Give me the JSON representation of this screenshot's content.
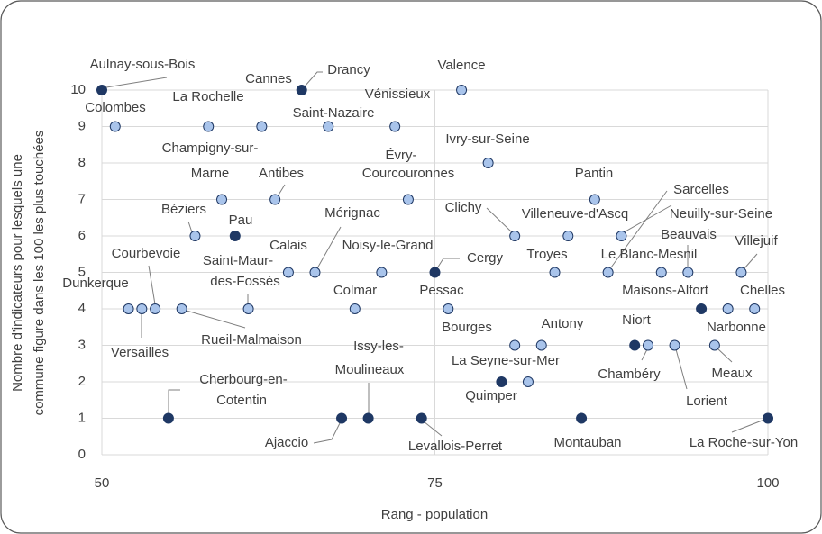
{
  "chart_data": {
    "type": "scatter",
    "xlabel": "Rang - population",
    "ylabel": [
      "Nombre d'indicateurs pour lesquels une",
      "commune figure dans les 100 les plus touchées"
    ],
    "xlim": [
      50,
      100
    ],
    "xticks": [
      50,
      75,
      100
    ],
    "ylim": [
      0,
      10
    ],
    "yticks": [
      0,
      1,
      2,
      3,
      4,
      5,
      6,
      7,
      8,
      9,
      10
    ],
    "grid": true,
    "points": [
      {
        "label": "Aulnay-sous-Bois",
        "x": 50,
        "y": 10,
        "color": "#1f3864"
      },
      {
        "label": "Drancy",
        "x": 65,
        "y": 10,
        "color": "#1f3864"
      },
      {
        "label": "Valence",
        "x": 77,
        "y": 10,
        "color": "#a9c4eb"
      },
      {
        "label": "Colombes",
        "x": 51,
        "y": 9,
        "color": "#a9c4eb"
      },
      {
        "label": "La Rochelle",
        "x": 58,
        "y": 9,
        "color": "#a9c4eb"
      },
      {
        "label": "Cannes",
        "x": 62,
        "y": 9,
        "color": "#a9c4eb"
      },
      {
        "label": "Saint-Nazaire",
        "x": 67,
        "y": 9,
        "color": "#a9c4eb"
      },
      {
        "label": "Vénissieux",
        "x": 72,
        "y": 9,
        "color": "#a9c4eb"
      },
      {
        "label": "Ivry-sur-Seine",
        "x": 79,
        "y": 8,
        "color": "#a9c4eb"
      },
      {
        "label": [
          "Champigny-sur-",
          "Marne"
        ],
        "x": 59,
        "y": 7,
        "color": "#a9c4eb"
      },
      {
        "label": "Antibes",
        "x": 63,
        "y": 7,
        "color": "#a9c4eb"
      },
      {
        "label": [
          "Évry-",
          "Courcouronnes"
        ],
        "x": 73,
        "y": 7,
        "color": "#a9c4eb"
      },
      {
        "label": "Pantin",
        "x": 87,
        "y": 7,
        "color": "#a9c4eb"
      },
      {
        "label": "Béziers",
        "x": 57,
        "y": 6,
        "color": "#a9c4eb"
      },
      {
        "label": "Pau",
        "x": 60,
        "y": 6,
        "color": "#1f3864"
      },
      {
        "label": "Clichy",
        "x": 81,
        "y": 6,
        "color": "#a9c4eb"
      },
      {
        "label": "Villeneuve-d'Ascq",
        "x": 85,
        "y": 6,
        "color": "#a9c4eb"
      },
      {
        "label": "Neuilly-sur-Seine",
        "x": 89,
        "y": 6,
        "color": "#a9c4eb"
      },
      {
        "label": "Calais",
        "x": 64,
        "y": 5,
        "color": "#a9c4eb"
      },
      {
        "label": "Mérignac",
        "x": 66,
        "y": 5,
        "color": "#a9c4eb"
      },
      {
        "label": "Noisy-le-Grand",
        "x": 71,
        "y": 5,
        "color": "#a9c4eb"
      },
      {
        "label": "Cergy",
        "x": 75,
        "y": 5,
        "color": "#1f3864"
      },
      {
        "label": "Troyes",
        "x": 84,
        "y": 5,
        "color": "#a9c4eb"
      },
      {
        "label": "Sarcelles",
        "x": 88,
        "y": 5,
        "color": "#a9c4eb"
      },
      {
        "label": "Le Blanc-Mesnil",
        "x": 92,
        "y": 5,
        "color": "#a9c4eb"
      },
      {
        "label": "Beauvais",
        "x": 94,
        "y": 5,
        "color": "#a9c4eb"
      },
      {
        "label": "Villejuif",
        "x": 98,
        "y": 5,
        "color": "#a9c4eb"
      },
      {
        "label": "Dunkerque",
        "x": 52,
        "y": 4,
        "color": "#a9c4eb"
      },
      {
        "label": "Versailles",
        "x": 53,
        "y": 4,
        "color": "#a9c4eb"
      },
      {
        "label": "Courbevoie",
        "x": 54,
        "y": 4,
        "color": "#a9c4eb"
      },
      {
        "label": "Rueil-Malmaison",
        "x": 56,
        "y": 4,
        "color": "#a9c4eb"
      },
      {
        "label": [
          "Saint-Maur-",
          "des-Fossés"
        ],
        "x": 61,
        "y": 4,
        "color": "#a9c4eb"
      },
      {
        "label": "Colmar",
        "x": 69,
        "y": 4,
        "color": "#a9c4eb"
      },
      {
        "label": "Pessac",
        "x": 76,
        "y": 4,
        "color": "#a9c4eb"
      },
      {
        "label": "Maisons-Alfort",
        "x": 95,
        "y": 4,
        "color": "#1f3864"
      },
      {
        "label": "Narbonne",
        "x": 97,
        "y": 4,
        "color": "#a9c4eb"
      },
      {
        "label": "Chelles",
        "x": 99,
        "y": 4,
        "color": "#a9c4eb"
      },
      {
        "label": "Bourges",
        "x": 81,
        "y": 3,
        "color": "#a9c4eb"
      },
      {
        "label": "Antony",
        "x": 83,
        "y": 3,
        "color": "#a9c4eb"
      },
      {
        "label": "Niort",
        "x": 90,
        "y": 3,
        "color": "#1f3864"
      },
      {
        "label": "Chambéry",
        "x": 91,
        "y": 3,
        "color": "#a9c4eb"
      },
      {
        "label": "Lorient",
        "x": 93,
        "y": 3,
        "color": "#a9c4eb"
      },
      {
        "label": "Meaux",
        "x": 96,
        "y": 3,
        "color": "#a9c4eb"
      },
      {
        "label": "Quimper",
        "x": 80,
        "y": 2,
        "color": "#1f3864"
      },
      {
        "label": "La Seyne-sur-Mer",
        "x": 82,
        "y": 2,
        "color": "#a9c4eb"
      },
      {
        "label": [
          "Cherbourg-en-",
          "Cotentin"
        ],
        "x": 55,
        "y": 1,
        "color": "#1f3864"
      },
      {
        "label": "Ajaccio",
        "x": 68,
        "y": 1,
        "color": "#1f3864"
      },
      {
        "label": [
          "Issy-les-",
          "Moulineaux"
        ],
        "x": 70,
        "y": 1,
        "color": "#1f3864"
      },
      {
        "label": "Levallois-Perret",
        "x": 74,
        "y": 1,
        "color": "#1f3864"
      },
      {
        "label": "Montauban",
        "x": 86,
        "y": 1,
        "color": "#1f3864"
      },
      {
        "label": "La Roche-sur-Yon",
        "x": 100,
        "y": 1,
        "color": "#1f3864"
      }
    ]
  }
}
